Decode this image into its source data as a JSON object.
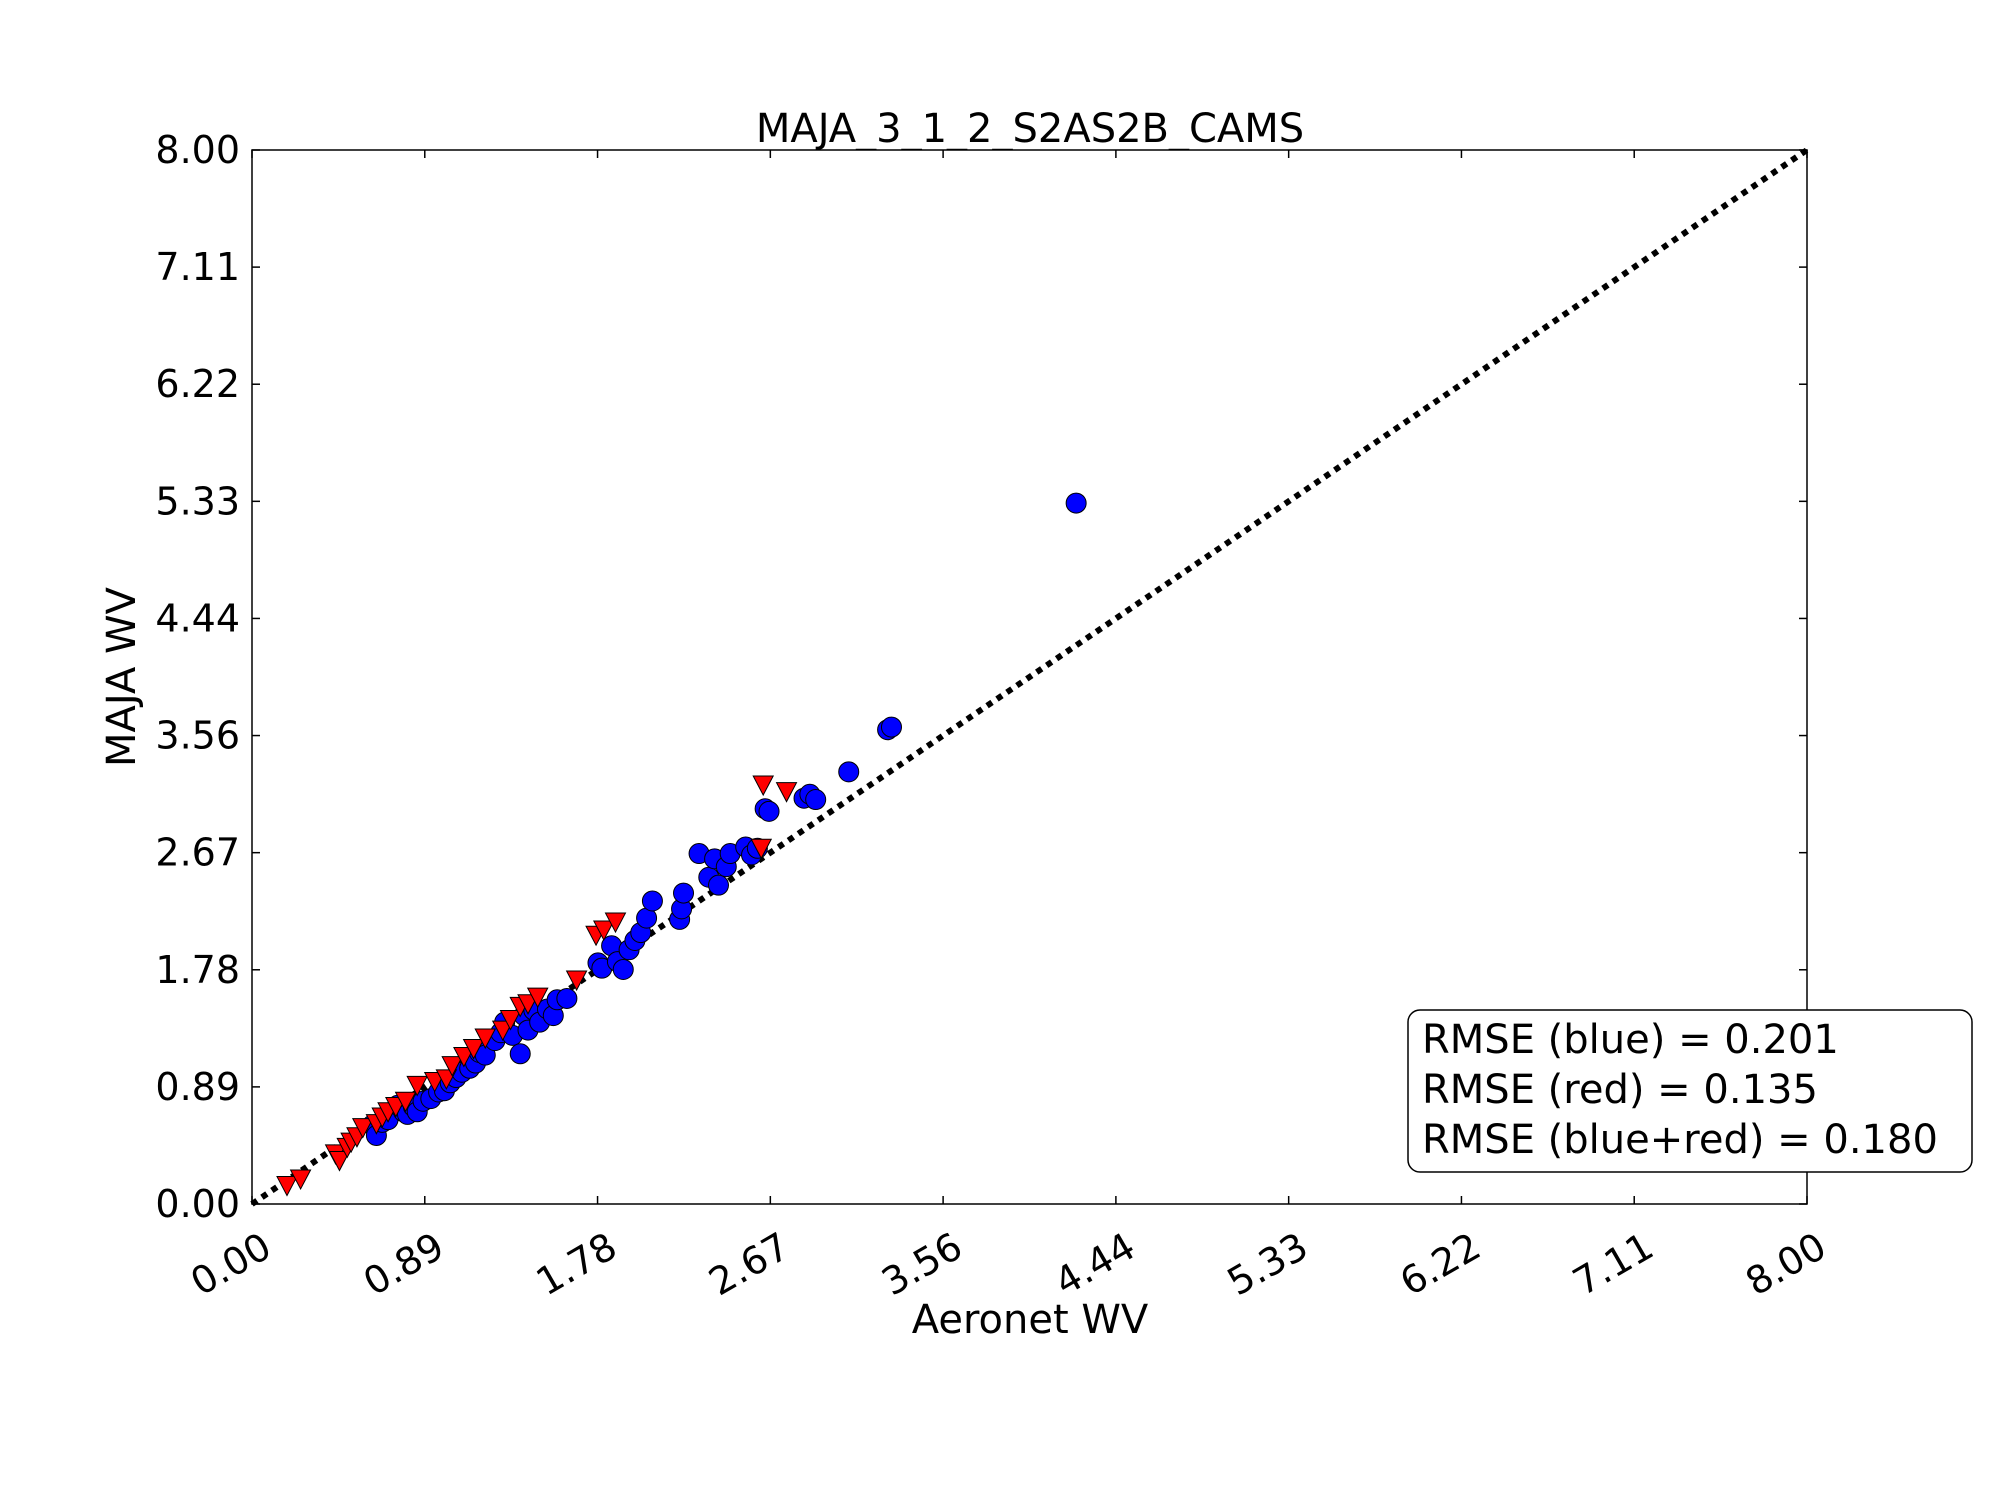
{
  "chart_data": {
    "type": "scatter",
    "title": "MAJA_3_1_2_S2AS2B_CAMS",
    "xlabel": "Aeronet WV",
    "ylabel": "MAJA WV",
    "xlim": [
      0,
      8
    ],
    "ylim": [
      0,
      8
    ],
    "xticks": [
      "0.00",
      "0.89",
      "1.78",
      "2.67",
      "3.56",
      "4.44",
      "5.33",
      "6.22",
      "7.11",
      "8.00"
    ],
    "yticks": [
      "0.00",
      "0.89",
      "1.78",
      "2.67",
      "3.56",
      "4.44",
      "5.33",
      "6.22",
      "7.11",
      "8.00"
    ],
    "reference_line": {
      "style": "dotted",
      "color": "#000000",
      "from": [
        0,
        0
      ],
      "to": [
        8,
        8
      ]
    },
    "grid": false,
    "stats_box": {
      "placement": "bottom-right",
      "lines": [
        "RMSE (blue) = 0.201",
        "RMSE (red) = 0.135",
        "RMSE (blue+red) = 0.180"
      ]
    },
    "series": [
      {
        "marker": "circle",
        "color": "#0000ff",
        "points": [
          [
            0.62,
            0.6
          ],
          [
            0.64,
            0.52
          ],
          [
            0.67,
            0.62
          ],
          [
            0.7,
            0.64
          ],
          [
            0.75,
            0.75
          ],
          [
            0.78,
            0.7
          ],
          [
            0.8,
            0.68
          ],
          [
            0.83,
            0.74
          ],
          [
            0.85,
            0.7
          ],
          [
            0.88,
            0.78
          ],
          [
            0.92,
            0.8
          ],
          [
            0.96,
            0.85
          ],
          [
            0.99,
            0.86
          ],
          [
            1.02,
            0.92
          ],
          [
            1.05,
            0.96
          ],
          [
            1.08,
            1.0
          ],
          [
            1.12,
            1.03
          ],
          [
            1.15,
            1.07
          ],
          [
            1.17,
            1.15
          ],
          [
            1.2,
            1.13
          ],
          [
            1.25,
            1.24
          ],
          [
            1.28,
            1.3
          ],
          [
            1.3,
            1.38
          ],
          [
            1.34,
            1.28
          ],
          [
            1.38,
            1.14
          ],
          [
            1.4,
            1.43
          ],
          [
            1.42,
            1.32
          ],
          [
            1.45,
            1.47
          ],
          [
            1.48,
            1.38
          ],
          [
            1.52,
            1.48
          ],
          [
            1.55,
            1.43
          ],
          [
            1.57,
            1.55
          ],
          [
            1.62,
            1.56
          ],
          [
            1.78,
            1.83
          ],
          [
            1.8,
            1.79
          ],
          [
            1.85,
            1.96
          ],
          [
            1.88,
            1.84
          ],
          [
            1.91,
            1.78
          ],
          [
            1.94,
            1.93
          ],
          [
            1.97,
            2.0
          ],
          [
            2.0,
            2.06
          ],
          [
            2.03,
            2.17
          ],
          [
            2.06,
            2.3
          ],
          [
            2.2,
            2.16
          ],
          [
            2.21,
            2.24
          ],
          [
            2.22,
            2.36
          ],
          [
            2.3,
            2.66
          ],
          [
            2.35,
            2.48
          ],
          [
            2.38,
            2.62
          ],
          [
            2.4,
            2.42
          ],
          [
            2.44,
            2.56
          ],
          [
            2.46,
            2.66
          ],
          [
            2.54,
            2.71
          ],
          [
            2.57,
            2.65
          ],
          [
            2.6,
            2.7
          ],
          [
            2.64,
            3.0
          ],
          [
            2.66,
            2.98
          ],
          [
            2.84,
            3.08
          ],
          [
            2.87,
            3.11
          ],
          [
            2.9,
            3.07
          ],
          [
            3.07,
            3.28
          ],
          [
            3.27,
            3.6
          ],
          [
            3.29,
            3.62
          ],
          [
            4.24,
            5.32
          ]
        ]
      },
      {
        "marker": "triangle-down",
        "color": "#ff0000",
        "points": [
          [
            0.18,
            0.14
          ],
          [
            0.25,
            0.19
          ],
          [
            0.43,
            0.38
          ],
          [
            0.45,
            0.33
          ],
          [
            0.49,
            0.43
          ],
          [
            0.51,
            0.47
          ],
          [
            0.54,
            0.51
          ],
          [
            0.57,
            0.58
          ],
          [
            0.64,
            0.61
          ],
          [
            0.67,
            0.66
          ],
          [
            0.7,
            0.7
          ],
          [
            0.74,
            0.74
          ],
          [
            0.79,
            0.78
          ],
          [
            0.85,
            0.9
          ],
          [
            0.94,
            0.93
          ],
          [
            1.0,
            0.95
          ],
          [
            1.03,
            1.05
          ],
          [
            1.09,
            1.12
          ],
          [
            1.14,
            1.18
          ],
          [
            1.2,
            1.26
          ],
          [
            1.29,
            1.32
          ],
          [
            1.33,
            1.4
          ],
          [
            1.38,
            1.5
          ],
          [
            1.42,
            1.52
          ],
          [
            1.47,
            1.57
          ],
          [
            1.67,
            1.7
          ],
          [
            1.77,
            2.04
          ],
          [
            1.81,
            2.08
          ],
          [
            1.87,
            2.14
          ],
          [
            2.62,
            2.7
          ],
          [
            2.63,
            3.18
          ],
          [
            2.75,
            3.13
          ]
        ]
      }
    ]
  }
}
